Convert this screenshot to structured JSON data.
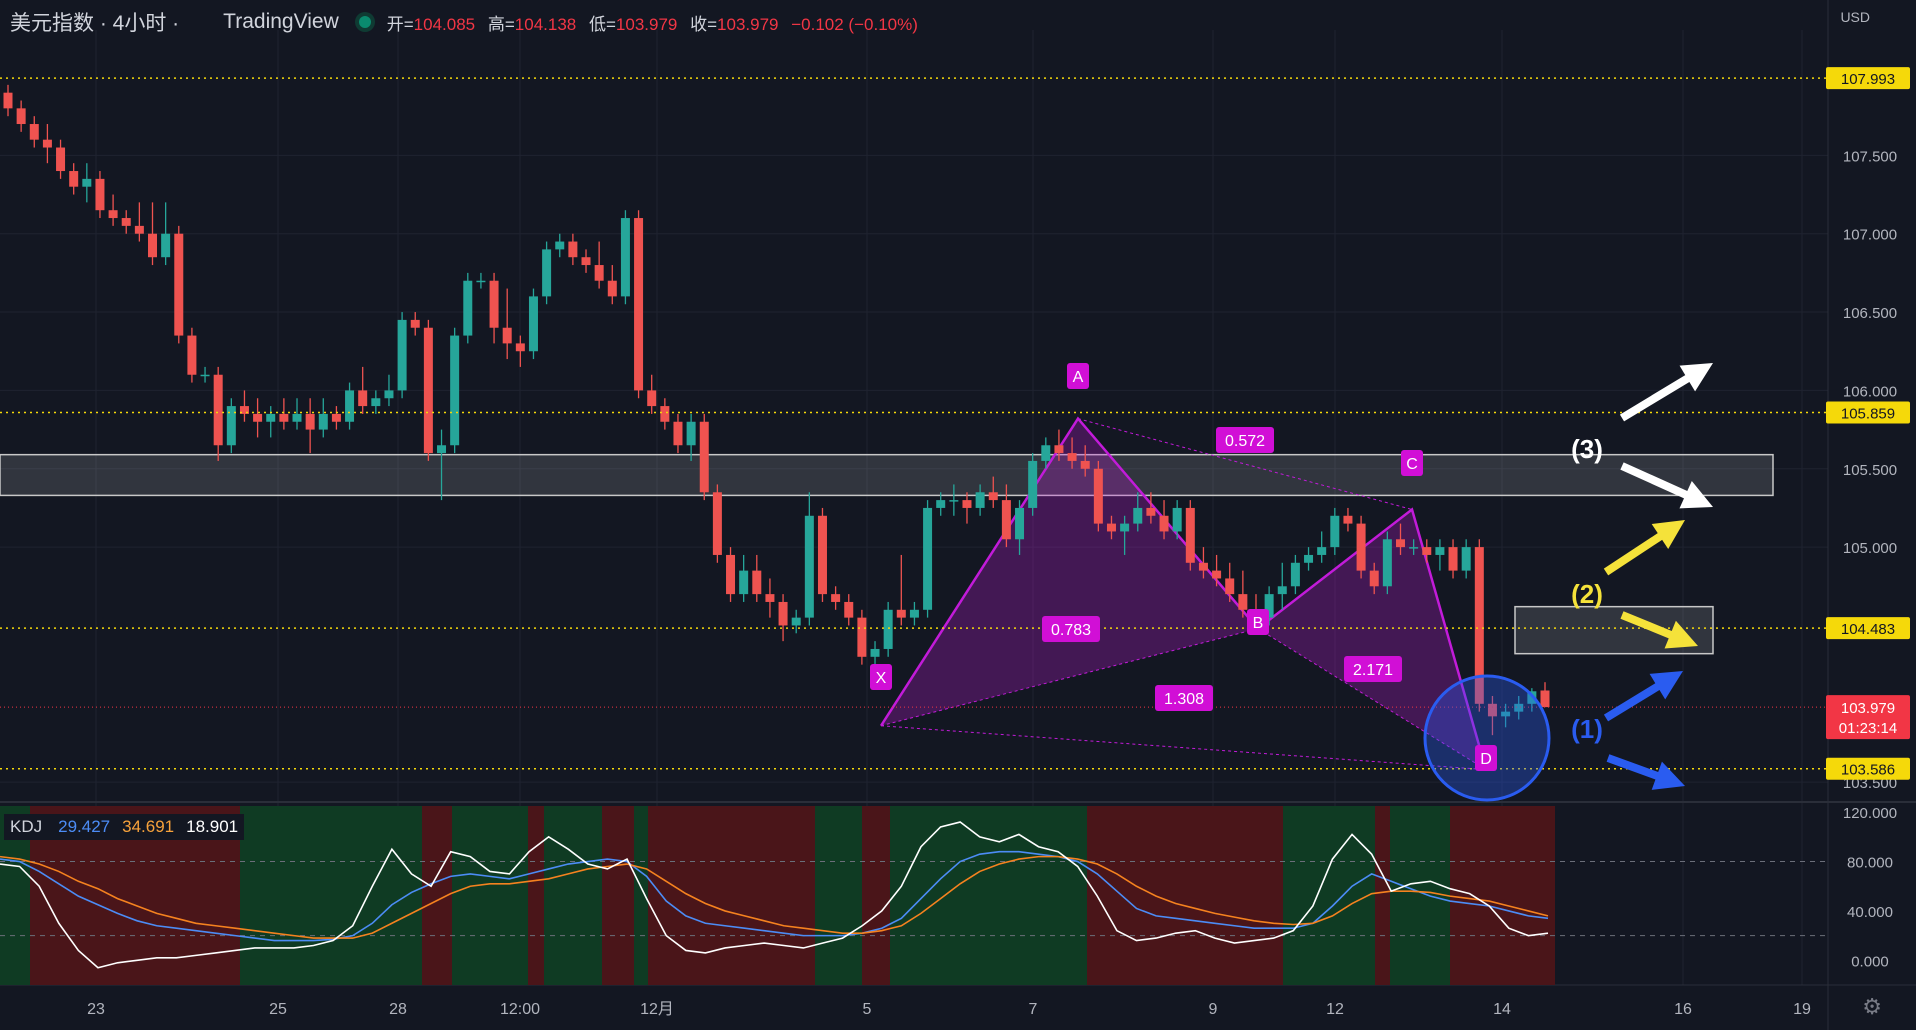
{
  "header": {
    "symbol": "美元指数 · 4小时 ·",
    "source": "TradingView",
    "open_label": "开=",
    "open": "104.085",
    "high_label": "高=",
    "high": "104.138",
    "low_label": "低=",
    "low": "103.979",
    "close_label": "收=",
    "close": "103.979",
    "change": "−0.102 (−0.10%)"
  },
  "currency": "USD",
  "price_labels": {
    "top": "107.993",
    "mid": "105.859",
    "level2": "104.483",
    "current": "103.979",
    "countdown": "01:23:14",
    "low": "103.586"
  },
  "kdj": {
    "title": "KDJ",
    "k": "29.427",
    "d": "34.691",
    "j": "18.901"
  },
  "pattern_labels": {
    "X": "X",
    "A": "A",
    "B": "B",
    "C": "C",
    "D": "D"
  },
  "ratios": {
    "ab": "0.572",
    "xb": "0.783",
    "bd": "2.171",
    "xd": "1.308"
  },
  "scenarios": {
    "s1": "(1)",
    "s2": "(2)",
    "s3": "(3)"
  },
  "colors": {
    "up": "#26a69a",
    "down": "#ef5350",
    "pattern": "#c21bd9",
    "bg": "#131722",
    "bull_zone": "#0f3b23",
    "bear_zone": "#4a1519"
  },
  "chart_data": {
    "type": "candlestick",
    "x_ticks": [
      "23",
      "25",
      "28",
      "12:00",
      "12月",
      "5",
      "7",
      "9",
      "12",
      "14",
      "16",
      "19"
    ],
    "y_ticks": [
      "107.500",
      "107.000",
      "106.500",
      "106.000",
      "105.500",
      "105.000",
      "103.500"
    ],
    "ylim": [
      103.45,
      108.3
    ],
    "series": [
      {
        "name": "price",
        "ohlc": [
          [
            107.9,
            107.95,
            107.75,
            107.8
          ],
          [
            107.8,
            107.85,
            107.65,
            107.7
          ],
          [
            107.7,
            107.75,
            107.55,
            107.6
          ],
          [
            107.6,
            107.7,
            107.45,
            107.55
          ],
          [
            107.55,
            107.6,
            107.35,
            107.4
          ],
          [
            107.4,
            107.45,
            107.25,
            107.3
          ],
          [
            107.3,
            107.45,
            107.2,
            107.35
          ],
          [
            107.35,
            107.4,
            107.1,
            107.15
          ],
          [
            107.15,
            107.25,
            107.05,
            107.1
          ],
          [
            107.1,
            107.15,
            107.0,
            107.05
          ],
          [
            107.05,
            107.2,
            106.95,
            107.0
          ],
          [
            107.0,
            107.2,
            106.8,
            106.85
          ],
          [
            106.85,
            107.2,
            106.8,
            107.0
          ],
          [
            107.0,
            107.05,
            106.3,
            106.35
          ],
          [
            106.35,
            106.4,
            106.05,
            106.1
          ],
          [
            106.1,
            106.15,
            106.05,
            106.1
          ],
          [
            106.1,
            106.15,
            105.55,
            105.65
          ],
          [
            105.65,
            105.95,
            105.6,
            105.9
          ],
          [
            105.9,
            106.0,
            105.8,
            105.85
          ],
          [
            105.85,
            105.95,
            105.7,
            105.8
          ],
          [
            105.8,
            105.9,
            105.7,
            105.85
          ],
          [
            105.85,
            105.95,
            105.75,
            105.8
          ],
          [
            105.8,
            105.95,
            105.75,
            105.85
          ],
          [
            105.85,
            105.95,
            105.6,
            105.75
          ],
          [
            105.75,
            105.95,
            105.7,
            105.85
          ],
          [
            105.85,
            105.9,
            105.75,
            105.8
          ],
          [
            105.8,
            106.05,
            105.75,
            106.0
          ],
          [
            106.0,
            106.15,
            105.85,
            105.9
          ],
          [
            105.9,
            106.0,
            105.85,
            105.95
          ],
          [
            105.95,
            106.1,
            105.9,
            106.0
          ],
          [
            106.0,
            106.5,
            105.95,
            106.45
          ],
          [
            106.45,
            106.5,
            106.35,
            106.4
          ],
          [
            106.4,
            106.45,
            105.55,
            105.6
          ],
          [
            105.6,
            105.75,
            105.3,
            105.65
          ],
          [
            105.65,
            106.4,
            105.6,
            106.35
          ],
          [
            106.35,
            106.75,
            106.3,
            106.7
          ],
          [
            106.7,
            106.75,
            106.65,
            106.7
          ],
          [
            106.7,
            106.75,
            106.3,
            106.4
          ],
          [
            106.4,
            106.65,
            106.2,
            106.3
          ],
          [
            106.3,
            106.35,
            106.15,
            106.25
          ],
          [
            106.25,
            106.65,
            106.2,
            106.6
          ],
          [
            106.6,
            106.95,
            106.55,
            106.9
          ],
          [
            106.9,
            107.0,
            106.85,
            106.95
          ],
          [
            106.95,
            107.0,
            106.8,
            106.85
          ],
          [
            106.85,
            106.9,
            106.75,
            106.8
          ],
          [
            106.8,
            106.95,
            106.65,
            106.7
          ],
          [
            106.7,
            106.8,
            106.55,
            106.6
          ],
          [
            106.6,
            107.15,
            106.55,
            107.1
          ],
          [
            107.1,
            107.15,
            105.95,
            106.0
          ],
          [
            106.0,
            106.1,
            105.85,
            105.9
          ],
          [
            105.9,
            105.95,
            105.75,
            105.8
          ],
          [
            105.8,
            105.85,
            105.6,
            105.65
          ],
          [
            105.65,
            105.85,
            105.55,
            105.8
          ],
          [
            105.8,
            105.85,
            105.3,
            105.35
          ],
          [
            105.35,
            105.4,
            104.9,
            104.95
          ],
          [
            104.95,
            105.0,
            104.65,
            104.7
          ],
          [
            104.7,
            104.95,
            104.65,
            104.85
          ],
          [
            104.85,
            104.95,
            104.65,
            104.7
          ],
          [
            104.7,
            104.8,
            104.55,
            104.65
          ],
          [
            104.65,
            104.7,
            104.4,
            104.5
          ],
          [
            104.5,
            104.6,
            104.45,
            104.55
          ],
          [
            104.55,
            105.35,
            104.5,
            105.2
          ],
          [
            105.2,
            105.25,
            104.65,
            104.7
          ],
          [
            104.7,
            104.75,
            104.6,
            104.65
          ],
          [
            104.65,
            104.7,
            104.5,
            104.55
          ],
          [
            104.55,
            104.6,
            104.25,
            104.3
          ],
          [
            104.3,
            104.4,
            104.22,
            104.35
          ],
          [
            104.35,
            104.65,
            104.3,
            104.6
          ],
          [
            104.6,
            104.95,
            104.5,
            104.55
          ],
          [
            104.55,
            104.65,
            104.5,
            104.6
          ],
          [
            104.6,
            105.3,
            104.55,
            105.25
          ],
          [
            105.25,
            105.35,
            105.2,
            105.3
          ],
          [
            105.3,
            105.4,
            105.2,
            105.3
          ],
          [
            105.3,
            105.35,
            105.15,
            105.25
          ],
          [
            105.25,
            105.4,
            105.2,
            105.35
          ],
          [
            105.35,
            105.45,
            105.25,
            105.3
          ],
          [
            105.3,
            105.4,
            105.0,
            105.05
          ],
          [
            105.05,
            105.3,
            104.95,
            105.25
          ],
          [
            105.25,
            105.6,
            105.2,
            105.55
          ],
          [
            105.55,
            105.7,
            105.5,
            105.65
          ],
          [
            105.65,
            105.75,
            105.55,
            105.6
          ],
          [
            105.6,
            105.7,
            105.5,
            105.55
          ],
          [
            105.55,
            105.65,
            105.45,
            105.5
          ],
          [
            105.5,
            105.55,
            105.1,
            105.15
          ],
          [
            105.15,
            105.2,
            105.05,
            105.1
          ],
          [
            105.1,
            105.2,
            104.95,
            105.15
          ],
          [
            105.15,
            105.35,
            105.1,
            105.25
          ],
          [
            105.25,
            105.35,
            105.15,
            105.2
          ],
          [
            105.2,
            105.3,
            105.05,
            105.1
          ],
          [
            105.1,
            105.3,
            105.05,
            105.25
          ],
          [
            105.25,
            105.3,
            104.85,
            104.9
          ],
          [
            104.9,
            105.0,
            104.8,
            104.85
          ],
          [
            104.85,
            104.95,
            104.75,
            104.8
          ],
          [
            104.8,
            104.9,
            104.65,
            104.7
          ],
          [
            104.7,
            104.85,
            104.55,
            104.6
          ],
          [
            104.6,
            104.7,
            104.5,
            104.55
          ],
          [
            104.55,
            104.75,
            104.5,
            104.7
          ],
          [
            104.7,
            104.9,
            104.6,
            104.75
          ],
          [
            104.75,
            104.95,
            104.7,
            104.9
          ],
          [
            104.9,
            105.0,
            104.85,
            104.95
          ],
          [
            104.95,
            105.1,
            104.9,
            105.0
          ],
          [
            105.0,
            105.25,
            104.95,
            105.2
          ],
          [
            105.2,
            105.25,
            105.1,
            105.15
          ],
          [
            105.15,
            105.2,
            104.8,
            104.85
          ],
          [
            104.85,
            104.9,
            104.7,
            104.75
          ],
          [
            104.75,
            105.1,
            104.7,
            105.05
          ],
          [
            105.05,
            105.15,
            104.95,
            105.0
          ],
          [
            105.0,
            105.05,
            104.95,
            105.0
          ],
          [
            105.0,
            105.05,
            104.9,
            104.95
          ],
          [
            104.95,
            105.05,
            104.85,
            105.0
          ],
          [
            105.0,
            105.05,
            104.8,
            104.85
          ],
          [
            104.85,
            105.05,
            104.8,
            105.0
          ],
          [
            105.0,
            105.05,
            103.95,
            104.0
          ],
          [
            104.0,
            104.05,
            103.8,
            103.92
          ],
          [
            103.92,
            104.0,
            103.85,
            103.95
          ],
          [
            103.95,
            104.05,
            103.9,
            104.0
          ],
          [
            104.0,
            104.1,
            103.95,
            104.08
          ],
          [
            104.085,
            104.138,
            103.979,
            103.979
          ]
        ]
      },
      {
        "name": "K",
        "values": [
          82,
          80,
          72,
          62,
          52,
          45,
          38,
          32,
          28,
          26,
          24,
          22,
          20,
          18,
          16,
          16,
          16,
          17,
          20,
          30,
          45,
          55,
          62,
          68,
          70,
          68,
          66,
          70,
          74,
          78,
          80,
          82,
          80,
          68,
          48,
          36,
          30,
          28,
          26,
          24,
          22,
          20,
          20,
          20,
          22,
          26,
          34,
          50,
          66,
          80,
          86,
          88,
          88,
          86,
          84,
          80,
          70,
          56,
          42,
          36,
          34,
          32,
          30,
          28,
          26,
          26,
          26,
          30,
          44,
          60,
          70,
          64,
          58,
          52,
          48,
          46,
          44,
          40,
          36,
          34
        ]
      },
      {
        "name": "D",
        "values": [
          84,
          82,
          78,
          72,
          64,
          58,
          50,
          44,
          38,
          34,
          30,
          28,
          26,
          24,
          22,
          20,
          18,
          18,
          18,
          22,
          30,
          38,
          46,
          54,
          60,
          62,
          62,
          64,
          66,
          70,
          74,
          76,
          78,
          74,
          64,
          54,
          46,
          40,
          36,
          32,
          28,
          26,
          24,
          22,
          22,
          24,
          28,
          38,
          50,
          62,
          72,
          78,
          82,
          84,
          84,
          82,
          78,
          70,
          60,
          52,
          46,
          42,
          38,
          35,
          32,
          30,
          29,
          30,
          36,
          46,
          54,
          56,
          56,
          55,
          52,
          50,
          48,
          44,
          40,
          36
        ]
      },
      {
        "name": "J",
        "values": [
          78,
          76,
          60,
          30,
          8,
          -6,
          -2,
          0,
          2,
          2,
          4,
          6,
          8,
          10,
          10,
          10,
          12,
          16,
          28,
          60,
          90,
          70,
          60,
          88,
          84,
          72,
          70,
          88,
          100,
          90,
          78,
          74,
          82,
          50,
          20,
          8,
          6,
          10,
          12,
          14,
          12,
          10,
          14,
          18,
          28,
          40,
          60,
          92,
          108,
          112,
          100,
          96,
          102,
          92,
          88,
          76,
          52,
          24,
          16,
          18,
          22,
          24,
          18,
          14,
          16,
          18,
          24,
          44,
          82,
          102,
          86,
          56,
          62,
          64,
          58,
          54,
          44,
          26,
          20,
          22
        ]
      }
    ],
    "pattern": {
      "name": "XABCD",
      "points": {
        "X": 103.86,
        "A": 105.82,
        "B": 104.48,
        "C": 105.24,
        "D": 103.58
      },
      "ratios": {
        "AB/XA": 0.572,
        "XB": 0.783,
        "BD": 2.171,
        "XD": 1.308
      }
    },
    "levels": [
      107.993,
      105.859,
      104.483,
      103.979,
      103.586
    ],
    "zones": [
      [
        105.33,
        105.59
      ],
      [
        104.32,
        104.62
      ]
    ],
    "indicator": {
      "name": "KDJ",
      "ylim": [
        -20,
        125
      ],
      "ticks": [
        "120.000",
        "80.000",
        "40.000",
        "0.000"
      ]
    }
  }
}
